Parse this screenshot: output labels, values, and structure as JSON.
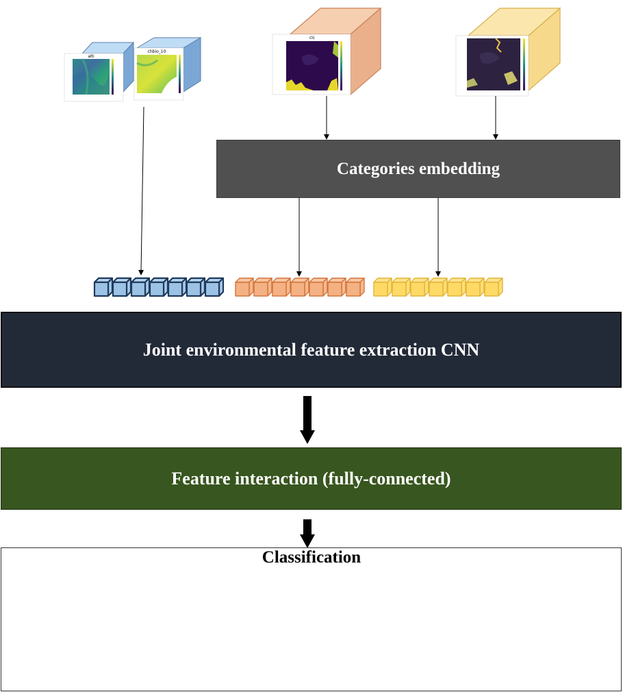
{
  "labels": {
    "embedding": "Categories embedding",
    "cnn": "Joint environmental feature extraction CNN",
    "fc": "Feature interaction (fully-connected)",
    "classification": "Classification"
  },
  "rasters": {
    "alti_title": "alti",
    "chbio_title": "chbio_10",
    "clc_title": "clc"
  },
  "colors": {
    "blue": "#9cc3e6",
    "orange": "#f4b183",
    "yellow": "#ffd966",
    "embedding_bg": "#505050",
    "cnn_bg": "#222a38",
    "fc_bg": "#38561f"
  }
}
